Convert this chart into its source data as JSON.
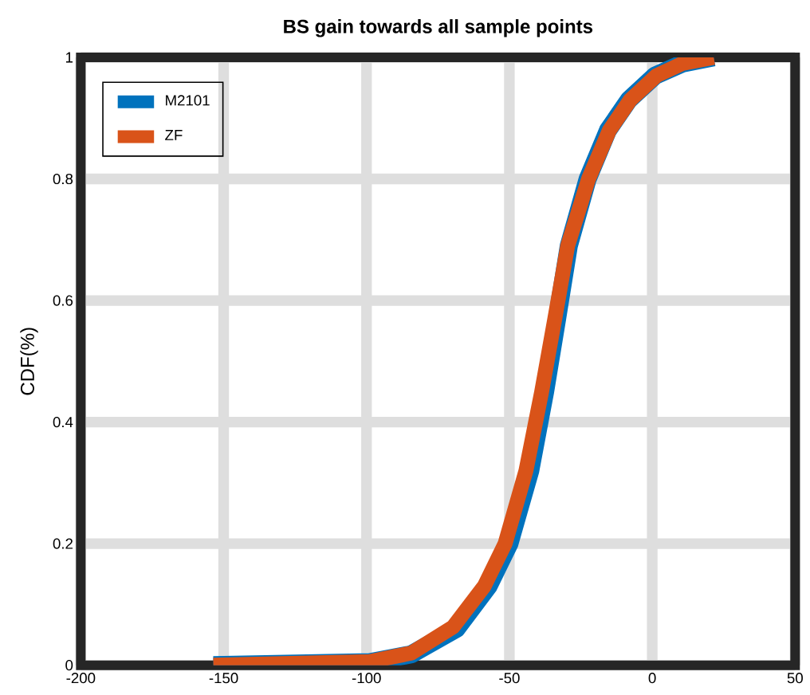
{
  "chart_data": {
    "type": "line",
    "title": "BS gain towards all sample points",
    "ylabel": "CDF(%)",
    "xlim": [
      -200,
      50
    ],
    "ylim": [
      0,
      1
    ],
    "xticks": [
      -200,
      -150,
      -100,
      -50,
      0,
      50
    ],
    "yticks": [
      0,
      0.2,
      0.4,
      0.6,
      0.8,
      1
    ],
    "grid": true,
    "legend": "top left",
    "line_style": "solid",
    "marker": "none",
    "series": [
      {
        "name": "M2101",
        "color": "#0072bd",
        "x": [
          -153.6,
          -98.9,
          -84.3,
          -68.5,
          -57.3,
          -50,
          -42.7,
          -37.5,
          -33.3,
          -29.2,
          -22.6,
          -15.5,
          -8.2,
          1,
          10.6,
          21.5
        ],
        "values": [
          0,
          0.005,
          0.018,
          0.06,
          0.13,
          0.2,
          0.32,
          0.45,
          0.57,
          0.69,
          0.8,
          0.88,
          0.93,
          0.97,
          0.99,
          1
        ]
      },
      {
        "name": "ZF",
        "color": "#d95319",
        "x": [
          -153.6,
          -98.9,
          -84.3,
          -69.7,
          -58.8,
          -51.5,
          -44.2,
          -38.7,
          -34.1,
          -29.6,
          -22.3,
          -15,
          -7.7,
          1.5,
          10.6,
          21.5
        ],
        "values": [
          0,
          0.006,
          0.02,
          0.063,
          0.13,
          0.2,
          0.32,
          0.45,
          0.57,
          0.69,
          0.8,
          0.88,
          0.93,
          0.97,
          0.99,
          1
        ]
      }
    ]
  }
}
